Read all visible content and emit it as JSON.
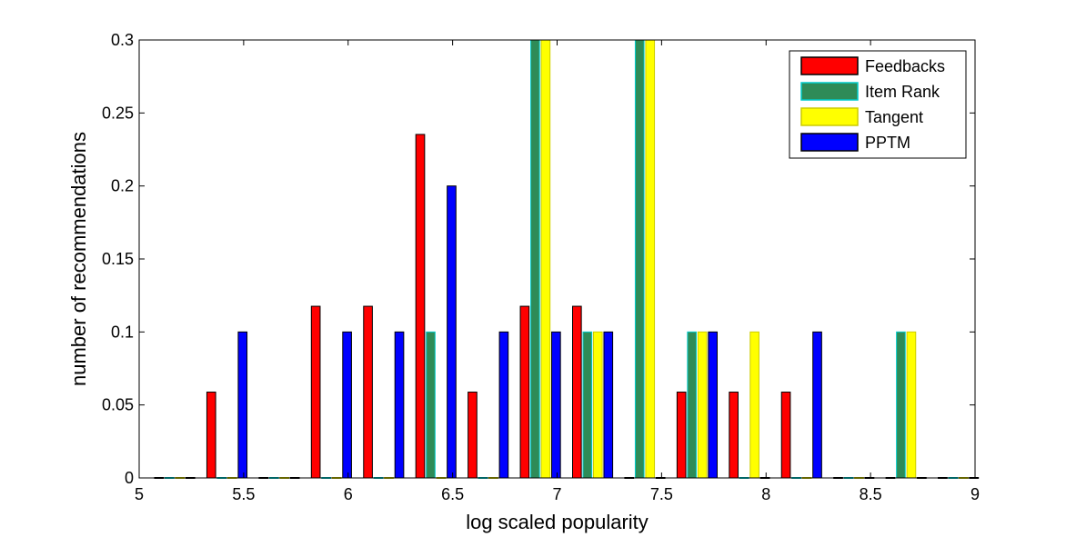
{
  "chart_data": {
    "type": "bar",
    "xlabel": "log scaled popularity",
    "ylabel": "number of recommendations",
    "xlim": [
      5,
      9
    ],
    "ylim": [
      0,
      0.3
    ],
    "xticks": [
      "5",
      "5.5",
      "6",
      "6.5",
      "7",
      "7.5",
      "8",
      "8.5",
      "9"
    ],
    "yticks": [
      "0",
      "0.05",
      "0.1",
      "0.15",
      "0.2",
      "0.25",
      "0.3"
    ],
    "grid": false,
    "legend_position": "top-right",
    "bin_centers": [
      5.17,
      5.42,
      5.67,
      5.92,
      6.17,
      6.42,
      6.67,
      6.92,
      7.17,
      7.42,
      7.67,
      7.92,
      8.17,
      8.42,
      8.67,
      8.92
    ],
    "series": [
      {
        "name": "Feedbacks",
        "color": "#ff0000",
        "edge": "#000000",
        "values": [
          0,
          0.0588,
          0,
          0.1176,
          0.1176,
          0.2353,
          0.0588,
          0.1176,
          0.1176,
          0,
          0.0588,
          0.0588,
          0.0588,
          0,
          0,
          0
        ]
      },
      {
        "name": "Item Rank",
        "color": "#2e8b57",
        "edge": "#00cccc",
        "values": [
          0,
          0,
          0,
          0,
          0,
          0.1,
          0,
          0.3,
          0.1,
          0.3,
          0.1,
          0,
          0,
          0,
          0.1,
          0
        ]
      },
      {
        "name": "Tangent",
        "color": "#ffff00",
        "edge": "#cccc00",
        "values": [
          0,
          0,
          0,
          0,
          0,
          0,
          0,
          0.3,
          0.1,
          0.3,
          0.1,
          0.1,
          0,
          0,
          0.1,
          0
        ]
      },
      {
        "name": "PPTM",
        "color": "#0000ff",
        "edge": "#000000",
        "values": [
          0,
          0.1,
          0,
          0.1,
          0.1,
          0.2,
          0.1,
          0.1,
          0.1,
          0,
          0.1,
          0,
          0.1,
          0,
          0,
          0
        ]
      }
    ]
  }
}
